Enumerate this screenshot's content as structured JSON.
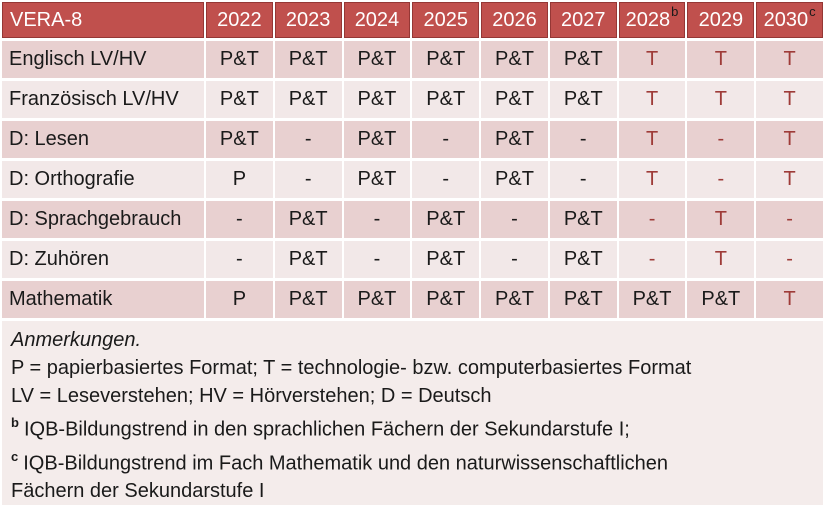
{
  "colors": {
    "header_bg": "#C0504D",
    "header_border": "#953735",
    "header_text": "#FFFFFF",
    "band_dark": "#E8D0D0",
    "band_light": "#F2E8E8",
    "notes_bg": "#F4ECEB",
    "red_text": "#9E3B38",
    "text": "#1A1A1A"
  },
  "table": {
    "header": [
      {
        "label": "VERA-8",
        "sup": ""
      },
      {
        "label": "2022",
        "sup": ""
      },
      {
        "label": "2023",
        "sup": ""
      },
      {
        "label": "2024",
        "sup": ""
      },
      {
        "label": "2025",
        "sup": ""
      },
      {
        "label": "2026",
        "sup": ""
      },
      {
        "label": "2027",
        "sup": ""
      },
      {
        "label": "2028",
        "sup": "b"
      },
      {
        "label": "2029",
        "sup": ""
      },
      {
        "label": "2030",
        "sup": "c"
      }
    ],
    "rows": [
      {
        "label": "Englisch LV/HV",
        "cells": [
          {
            "v": "P&T",
            "red": false
          },
          {
            "v": "P&T",
            "red": false
          },
          {
            "v": "P&T",
            "red": false
          },
          {
            "v": "P&T",
            "red": false
          },
          {
            "v": "P&T",
            "red": false
          },
          {
            "v": "P&T",
            "red": false
          },
          {
            "v": "T",
            "red": true
          },
          {
            "v": "T",
            "red": true
          },
          {
            "v": "T",
            "red": true
          }
        ]
      },
      {
        "label": "Französisch LV/HV",
        "cells": [
          {
            "v": "P&T",
            "red": false
          },
          {
            "v": "P&T",
            "red": false
          },
          {
            "v": "P&T",
            "red": false
          },
          {
            "v": "P&T",
            "red": false
          },
          {
            "v": "P&T",
            "red": false
          },
          {
            "v": "P&T",
            "red": false
          },
          {
            "v": "T",
            "red": true
          },
          {
            "v": "T",
            "red": true
          },
          {
            "v": "T",
            "red": true
          }
        ]
      },
      {
        "label": "D: Lesen",
        "cells": [
          {
            "v": "P&T",
            "red": false
          },
          {
            "v": "-",
            "red": false
          },
          {
            "v": "P&T",
            "red": false
          },
          {
            "v": "-",
            "red": false
          },
          {
            "v": "P&T",
            "red": false
          },
          {
            "v": "-",
            "red": false
          },
          {
            "v": "T",
            "red": true
          },
          {
            "v": "-",
            "red": true
          },
          {
            "v": "T",
            "red": true
          }
        ]
      },
      {
        "label": "D: Orthografie",
        "cells": [
          {
            "v": "P",
            "red": false
          },
          {
            "v": "-",
            "red": false
          },
          {
            "v": "P&T",
            "red": false
          },
          {
            "v": "-",
            "red": false
          },
          {
            "v": "P&T",
            "red": false
          },
          {
            "v": "-",
            "red": false
          },
          {
            "v": "T",
            "red": true
          },
          {
            "v": "-",
            "red": true
          },
          {
            "v": "T",
            "red": true
          }
        ]
      },
      {
        "label": "D: Sprachgebrauch",
        "cells": [
          {
            "v": "-",
            "red": false
          },
          {
            "v": "P&T",
            "red": false
          },
          {
            "v": "-",
            "red": false
          },
          {
            "v": "P&T",
            "red": false
          },
          {
            "v": "-",
            "red": false
          },
          {
            "v": "P&T",
            "red": false
          },
          {
            "v": "-",
            "red": true
          },
          {
            "v": "T",
            "red": true
          },
          {
            "v": "-",
            "red": true
          }
        ]
      },
      {
        "label": "D: Zuhören",
        "cells": [
          {
            "v": "-",
            "red": false
          },
          {
            "v": "P&T",
            "red": false
          },
          {
            "v": "-",
            "red": false
          },
          {
            "v": "P&T",
            "red": false
          },
          {
            "v": "-",
            "red": false
          },
          {
            "v": "P&T",
            "red": false
          },
          {
            "v": "-",
            "red": true
          },
          {
            "v": "T",
            "red": true
          },
          {
            "v": "-",
            "red": true
          }
        ]
      },
      {
        "label": "Mathematik",
        "cells": [
          {
            "v": "P",
            "red": false
          },
          {
            "v": "P&T",
            "red": false
          },
          {
            "v": "P&T",
            "red": false
          },
          {
            "v": "P&T",
            "red": false
          },
          {
            "v": "P&T",
            "red": false
          },
          {
            "v": "P&T",
            "red": false
          },
          {
            "v": "P&T",
            "red": false
          },
          {
            "v": "P&T",
            "red": false
          },
          {
            "v": "T",
            "red": true
          }
        ]
      }
    ]
  },
  "notes": {
    "title": "Anmerkungen.",
    "lines": [
      "P = papierbasiertes Format; T = technologie- bzw. computerbasiertes Format",
      "LV = Leseverstehen; HV = Hörverstehen; D = Deutsch"
    ],
    "footnotes": [
      {
        "sup": "b",
        "text": "IQB-Bildungstrend in den sprachlichen Fächern der Sekundarstufe I;"
      },
      {
        "sup": "c",
        "text": "IQB-Bildungstrend im Fach Mathematik und den naturwissenschaftlichen\nFächern der Sekundarstufe I"
      }
    ]
  }
}
